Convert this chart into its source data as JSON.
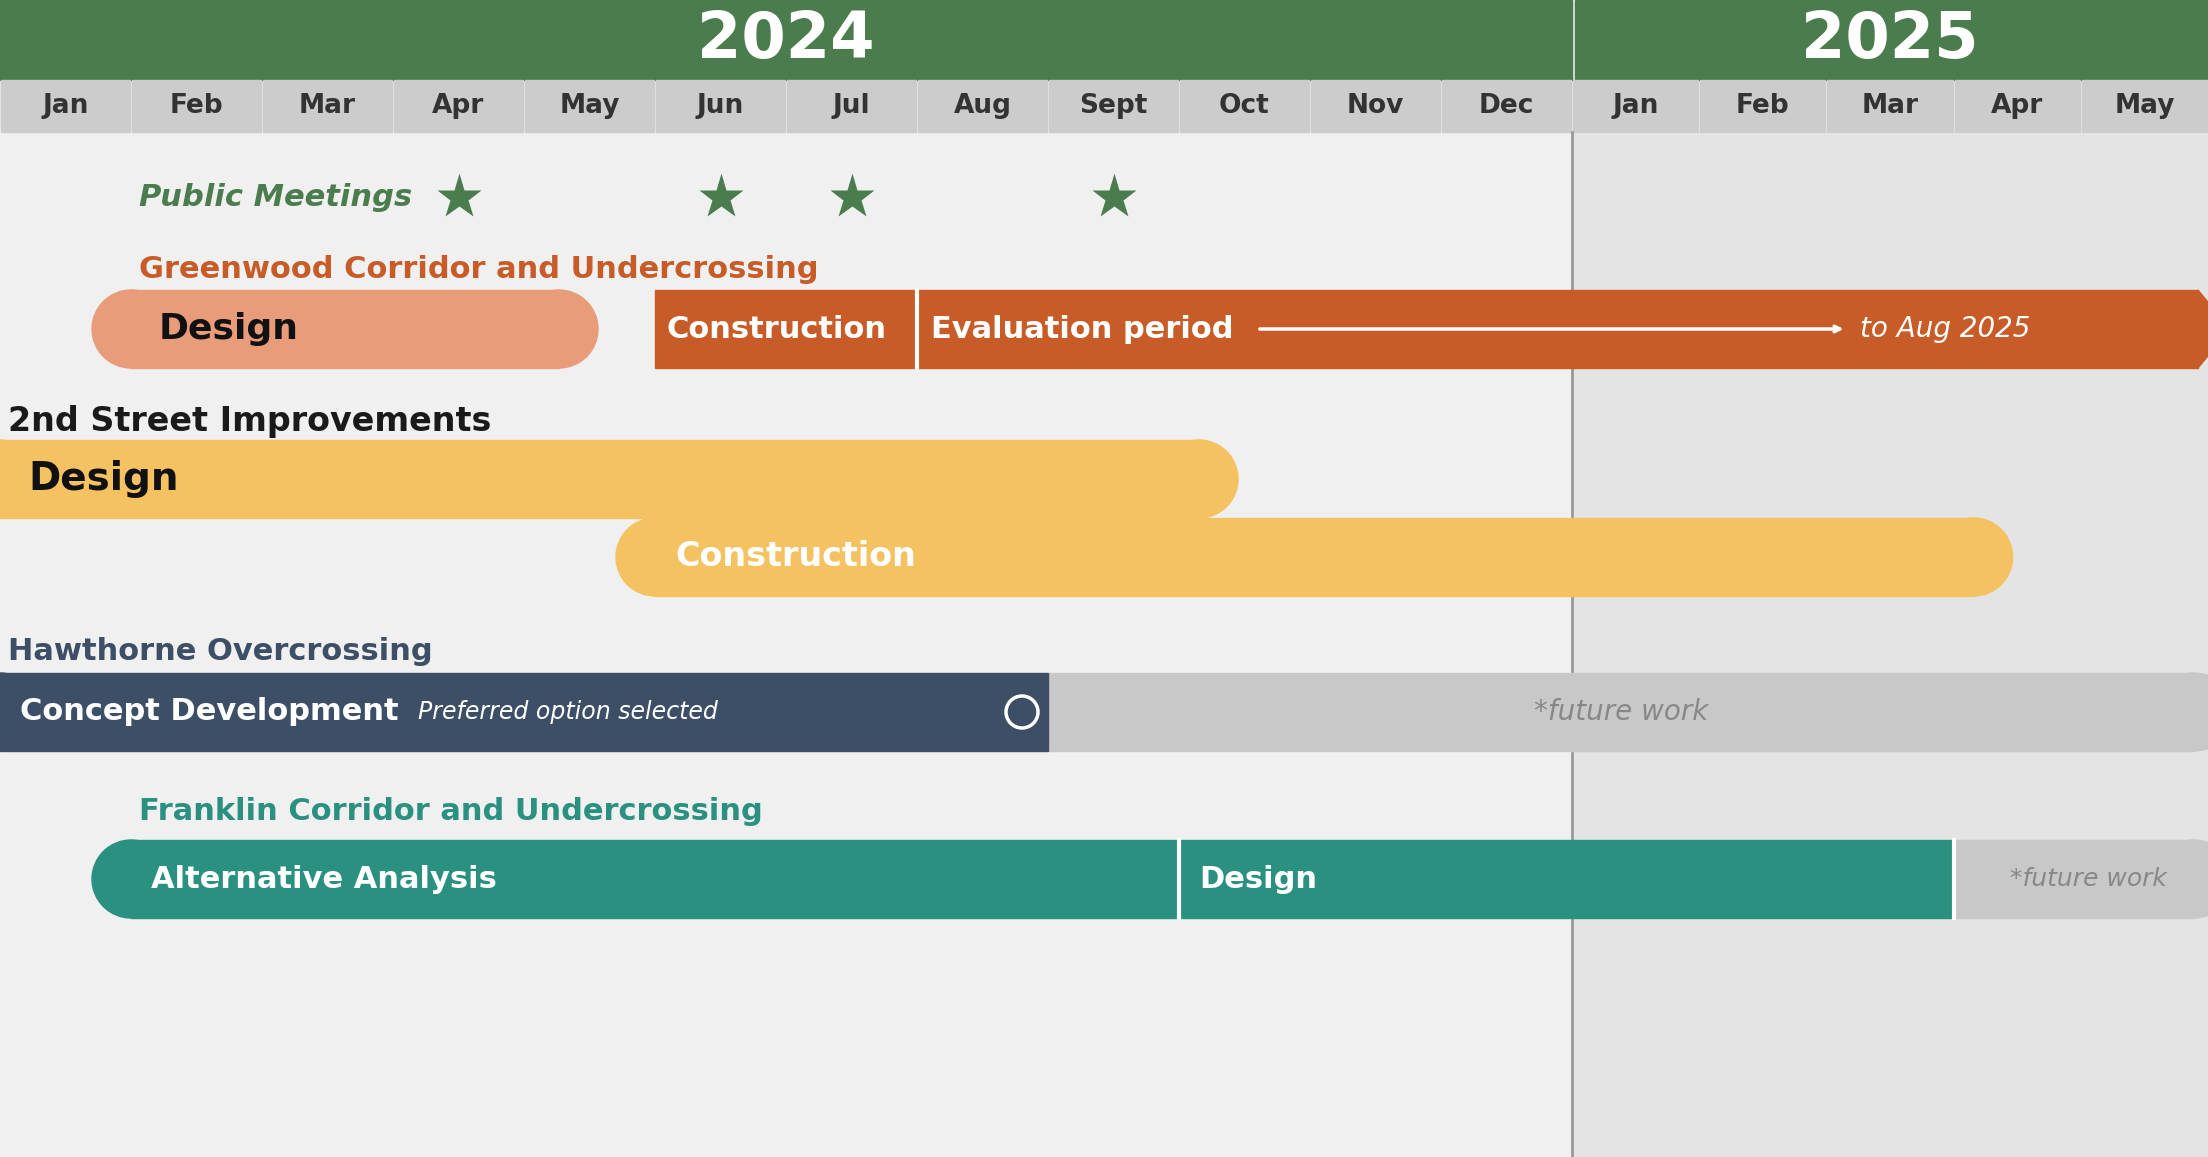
{
  "title_2024": "2024",
  "title_2025": "2025",
  "months_2024": [
    "Jan",
    "Feb",
    "Mar",
    "Apr",
    "May",
    "Jun",
    "Jul",
    "Aug",
    "Sept",
    "Oct",
    "Nov",
    "Dec"
  ],
  "months_2025": [
    "Jan",
    "Feb",
    "Mar",
    "Apr",
    "May"
  ],
  "bg_color": "#ececec",
  "header_color": "#4a7c4e",
  "header_text_color": "#ffffff",
  "month_bg_color": "#cccccc",
  "content_bg_left": "#f0f0f0",
  "content_bg_right": "#e4e4e4",
  "star_color": "#4a7c4e",
  "public_meetings_color": "#4a7c4e",
  "greenwood_title_color": "#c85c28",
  "greenwood_design_color": "#e89c7a",
  "greenwood_construction_color": "#c85c28",
  "greenwood_eval_color": "#c85c28",
  "second_st_title_color": "#1a1a1a",
  "second_st_design_color": "#f5c262",
  "second_st_construction_color": "#f5c262",
  "hawthorne_title_color": "#3d4f66",
  "hawthorne_concept_color": "#3d4f66",
  "hawthorne_future_color": "#c8c8c8",
  "franklin_title_color": "#2a9080",
  "franklin_alt_color": "#2a9080",
  "franklin_design_color": "#2a9080",
  "franklin_future_color": "#c8c8c8",
  "divider_color": "#999999",
  "future_text_color": "#888888",
  "white": "#ffffff",
  "black": "#111111"
}
